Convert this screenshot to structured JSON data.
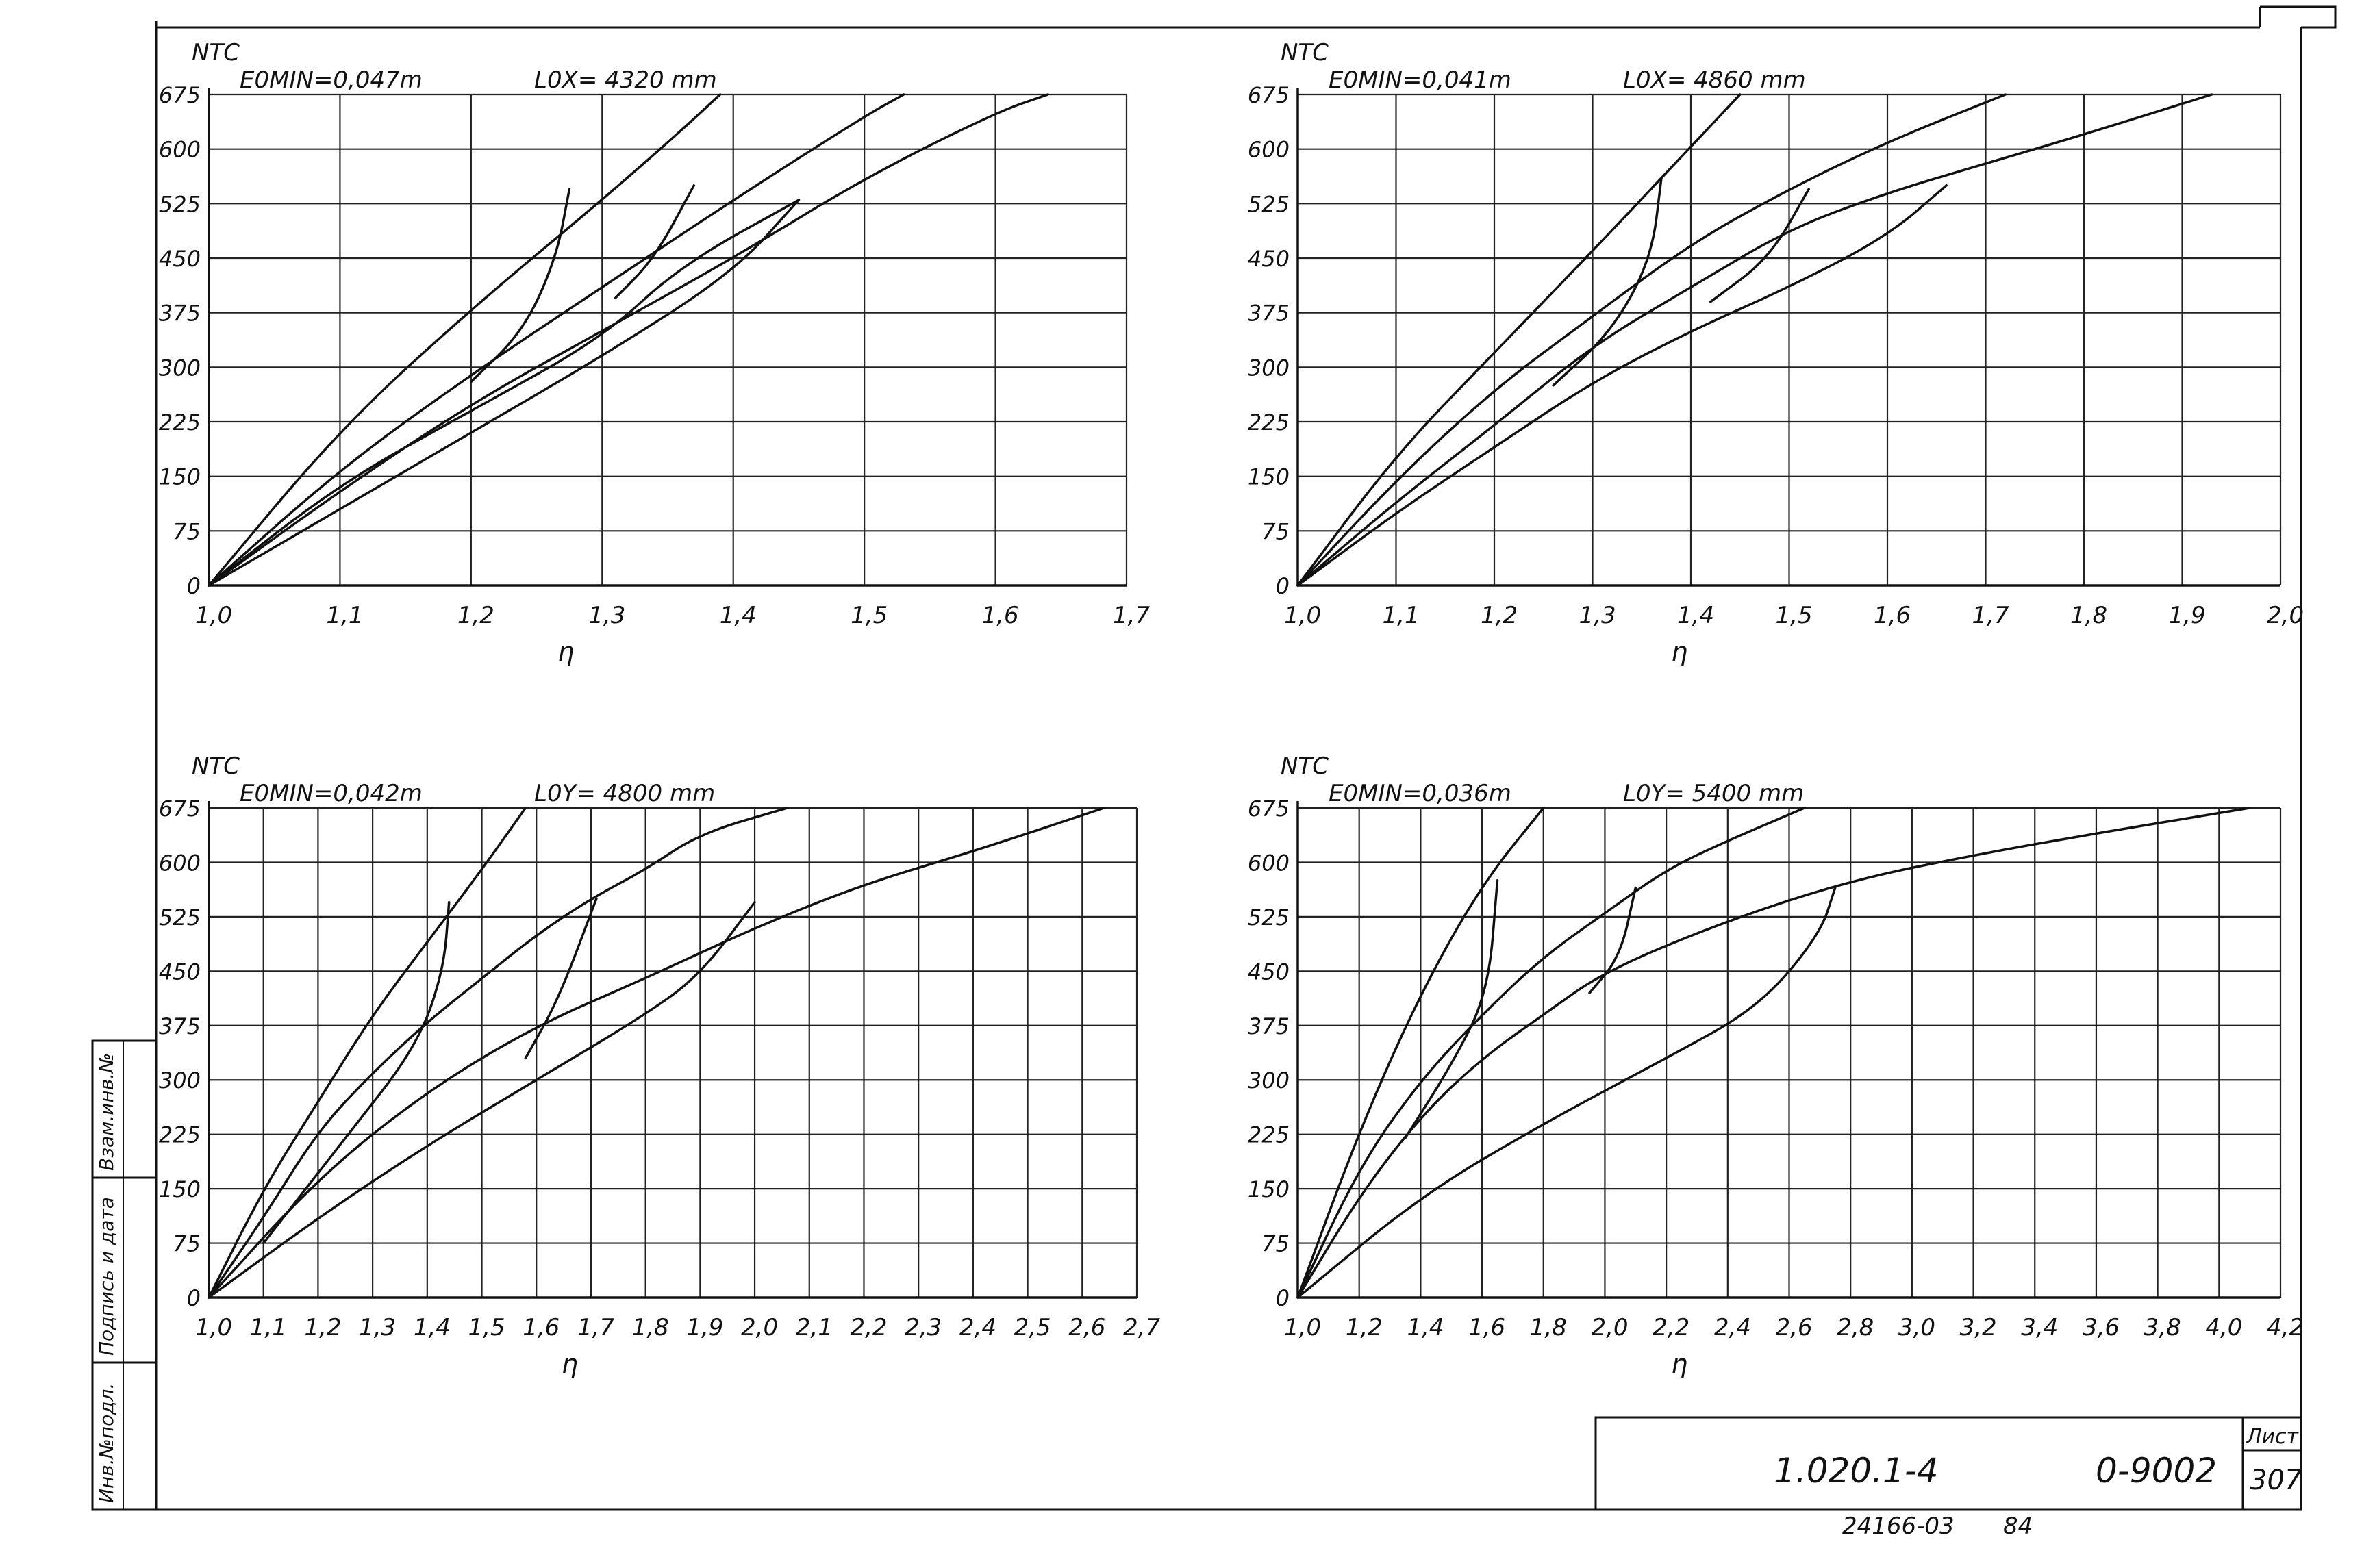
{
  "sheet": {
    "designation": "1.020.1-4",
    "code": "0-9002",
    "list_label": "Лист",
    "list_number": "307",
    "archive_number": "24166-03",
    "archive_suffix": "84",
    "side_labels": [
      "Инв.№подл.",
      "Подпись и дата",
      "Взам.инв.№"
    ]
  },
  "chart_data": [
    {
      "type": "line",
      "ylabel": "NТС",
      "xlabel": "η",
      "annotations": [
        "E0MIN=0,047m",
        "L0X= 4320 mm"
      ],
      "xlim": [
        1.0,
        1.7
      ],
      "ylim": [
        0,
        675
      ],
      "xticks": [
        "1,0",
        "1,1",
        "1,2",
        "1,3",
        "1,4",
        "1,5",
        "1,6",
        "1,7"
      ],
      "yticks": [
        "0",
        "75",
        "150",
        "225",
        "300",
        "375",
        "450",
        "525",
        "600",
        "675"
      ],
      "series": [
        {
          "values": [
            [
              1.0,
              0
            ],
            [
              1.1,
              215
            ],
            [
              1.2,
              380
            ],
            [
              1.3,
              530
            ],
            [
              1.36,
              625
            ],
            [
              1.39,
              675
            ]
          ]
        },
        {
          "values": [
            [
              1.0,
              0
            ],
            [
              1.1,
              160
            ],
            [
              1.2,
              290
            ],
            [
              1.3,
              410
            ],
            [
              1.4,
              530
            ],
            [
              1.5,
              645
            ],
            [
              1.53,
              675
            ]
          ]
        },
        {
          "values": [
            [
              1.0,
              0
            ],
            [
              1.1,
              130
            ],
            [
              1.2,
              250
            ],
            [
              1.3,
              350
            ],
            [
              1.4,
              450
            ],
            [
              1.5,
              560
            ],
            [
              1.6,
              650
            ],
            [
              1.64,
              675
            ]
          ]
        },
        {
          "values": [
            [
              1.0,
              0
            ],
            [
              1.1,
              105
            ],
            [
              1.2,
              210
            ],
            [
              1.3,
              315
            ],
            [
              1.4,
              430
            ],
            [
              1.45,
              530
            ]
          ]
        },
        {
          "values": [
            [
              1.2,
              280
            ],
            [
              1.24,
              350
            ],
            [
              1.265,
              450
            ],
            [
              1.275,
              545
            ]
          ]
        },
        {
          "values": [
            [
              1.31,
              395
            ],
            [
              1.34,
              450
            ],
            [
              1.37,
              550
            ]
          ]
        },
        {
          "values": [
            [
              1.0,
              0
            ],
            [
              1.1,
              140
            ],
            [
              1.2,
              240
            ],
            [
              1.3,
              340
            ],
            [
              1.36,
              440
            ],
            [
              1.45,
              530
            ]
          ]
        }
      ]
    },
    {
      "type": "line",
      "ylabel": "NТС",
      "xlabel": "η",
      "annotations": [
        "E0MIN=0,041m",
        "L0X= 4860 mm"
      ],
      "xlim": [
        1.0,
        2.0
      ],
      "ylim": [
        0,
        675
      ],
      "xticks": [
        "1,0",
        "1,1",
        "1,2",
        "1,3",
        "1,4",
        "1,5",
        "1,6",
        "1,7",
        "1,8",
        "1,9",
        "2,0"
      ],
      "yticks": [
        "0",
        "75",
        "150",
        "225",
        "300",
        "375",
        "450",
        "525",
        "600",
        "675"
      ],
      "series": [
        {
          "values": [
            [
              1.0,
              0
            ],
            [
              1.1,
              180
            ],
            [
              1.2,
              320
            ],
            [
              1.3,
              460
            ],
            [
              1.37,
              560
            ],
            [
              1.45,
              675
            ]
          ]
        },
        {
          "values": [
            [
              1.0,
              0
            ],
            [
              1.1,
              145
            ],
            [
              1.2,
              270
            ],
            [
              1.3,
              370
            ],
            [
              1.4,
              470
            ],
            [
              1.5,
              545
            ],
            [
              1.6,
              610
            ],
            [
              1.72,
              675
            ]
          ]
        },
        {
          "values": [
            [
              1.0,
              0
            ],
            [
              1.1,
              115
            ],
            [
              1.2,
              220
            ],
            [
              1.3,
              330
            ],
            [
              1.4,
              410
            ],
            [
              1.5,
              490
            ],
            [
              1.6,
              540
            ],
            [
              1.7,
              580
            ],
            [
              1.8,
              620
            ],
            [
              1.93,
              675
            ]
          ]
        },
        {
          "values": [
            [
              1.0,
              0
            ],
            [
              1.1,
              100
            ],
            [
              1.2,
              190
            ],
            [
              1.3,
              280
            ],
            [
              1.4,
              350
            ],
            [
              1.5,
              410
            ],
            [
              1.6,
              480
            ],
            [
              1.66,
              550
            ]
          ]
        },
        {
          "values": [
            [
              1.26,
              275
            ],
            [
              1.32,
              350
            ],
            [
              1.36,
              450
            ],
            [
              1.37,
              560
            ]
          ]
        },
        {
          "values": [
            [
              1.42,
              390
            ],
            [
              1.48,
              450
            ],
            [
              1.52,
              545
            ]
          ]
        }
      ]
    },
    {
      "type": "line",
      "ylabel": "NТС",
      "xlabel": "η",
      "annotations": [
        "E0MIN=0,042m",
        "L0Y= 4800 mm"
      ],
      "xlim": [
        1.0,
        2.7
      ],
      "ylim": [
        0,
        675
      ],
      "xticks": [
        "1,0",
        "1,1",
        "1,2",
        "1,3",
        "1,4",
        "1,5",
        "1,6",
        "1,7",
        "1,8",
        "1,9",
        "2,0",
        "2,1",
        "2,2",
        "2,3",
        "2,4",
        "2,5",
        "2,6",
        "2,7"
      ],
      "yticks": [
        "0",
        "75",
        "150",
        "225",
        "300",
        "375",
        "450",
        "525",
        "600",
        "675"
      ],
      "series": [
        {
          "values": [
            [
              1.0,
              0
            ],
            [
              1.1,
              150
            ],
            [
              1.2,
              270
            ],
            [
              1.3,
              390
            ],
            [
              1.4,
              490
            ],
            [
              1.5,
              590
            ],
            [
              1.58,
              675
            ]
          ]
        },
        {
          "values": [
            [
              1.0,
              0
            ],
            [
              1.1,
              110
            ],
            [
              1.2,
              230
            ],
            [
              1.3,
              310
            ],
            [
              1.4,
              380
            ],
            [
              1.5,
              440
            ],
            [
              1.6,
              500
            ],
            [
              1.7,
              550
            ],
            [
              1.8,
              590
            ],
            [
              1.9,
              640
            ],
            [
              2.06,
              675
            ]
          ]
        },
        {
          "values": [
            [
              1.0,
              0
            ],
            [
              1.2,
              165
            ],
            [
              1.4,
              285
            ],
            [
              1.6,
              375
            ],
            [
              1.8,
              440
            ],
            [
              2.0,
              510
            ],
            [
              2.2,
              570
            ],
            [
              2.4,
              615
            ],
            [
              2.64,
              675
            ]
          ]
        },
        {
          "values": [
            [
              1.0,
              0
            ],
            [
              1.2,
              110
            ],
            [
              1.4,
              210
            ],
            [
              1.6,
              300
            ],
            [
              1.8,
              390
            ],
            [
              1.9,
              445
            ],
            [
              2.0,
              545
            ]
          ]
        },
        {
          "values": [
            [
              1.1,
              75
            ],
            [
              1.25,
              220
            ],
            [
              1.38,
              345
            ],
            [
              1.43,
              450
            ],
            [
              1.44,
              545
            ]
          ]
        },
        {
          "values": [
            [
              1.58,
              330
            ],
            [
              1.64,
              410
            ],
            [
              1.71,
              550
            ]
          ]
        }
      ]
    },
    {
      "type": "line",
      "ylabel": "NТС",
      "xlabel": "η",
      "annotations": [
        "E0MIN=0,036m",
        "L0Y= 5400 mm"
      ],
      "xlim": [
        1.0,
        4.2
      ],
      "ylim": [
        0,
        675
      ],
      "xticks": [
        "1,0",
        "1,2",
        "1,4",
        "1,6",
        "1,8",
        "2,0",
        "2,2",
        "2,4",
        "2,6",
        "2,8",
        "3,0",
        "3,2",
        "3,4",
        "3,6",
        "3,8",
        "4,0",
        "4,2"
      ],
      "yticks": [
        "0",
        "75",
        "150",
        "225",
        "300",
        "375",
        "450",
        "525",
        "600",
        "675"
      ],
      "series": [
        {
          "values": [
            [
              1.0,
              0
            ],
            [
              1.2,
              230
            ],
            [
              1.4,
              420
            ],
            [
              1.6,
              570
            ],
            [
              1.8,
              675
            ]
          ]
        },
        {
          "values": [
            [
              1.0,
              0
            ],
            [
              1.2,
              180
            ],
            [
              1.4,
              300
            ],
            [
              1.6,
              390
            ],
            [
              1.8,
              470
            ],
            [
              2.0,
              530
            ],
            [
              2.2,
              590
            ],
            [
              2.4,
              630
            ],
            [
              2.65,
              675
            ]
          ]
        },
        {
          "values": [
            [
              1.0,
              0
            ],
            [
              1.2,
              140
            ],
            [
              1.4,
              250
            ],
            [
              1.6,
              330
            ],
            [
              1.8,
              390
            ],
            [
              2.0,
              450
            ],
            [
              2.4,
              520
            ],
            [
              2.8,
              575
            ],
            [
              3.2,
              610
            ],
            [
              3.6,
              640
            ],
            [
              4.1,
              675
            ]
          ]
        },
        {
          "values": [
            [
              1.0,
              0
            ],
            [
              1.4,
              140
            ],
            [
              1.8,
              240
            ],
            [
              2.2,
              330
            ],
            [
              2.5,
              400
            ],
            [
              2.7,
              500
            ],
            [
              2.75,
              565
            ]
          ]
        },
        {
          "values": [
            [
              1.35,
              220
            ],
            [
              1.5,
              320
            ],
            [
              1.62,
              420
            ],
            [
              1.65,
              575
            ]
          ]
        },
        {
          "values": [
            [
              1.95,
              420
            ],
            [
              2.05,
              470
            ],
            [
              2.1,
              565
            ]
          ]
        }
      ]
    }
  ]
}
